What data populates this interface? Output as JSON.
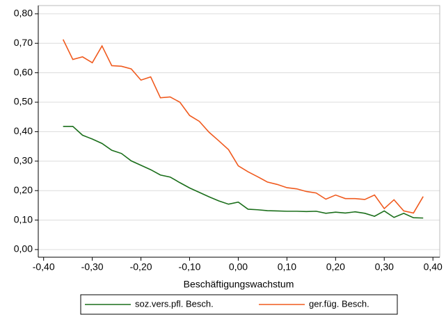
{
  "chart_data": {
    "type": "line",
    "x_label": "Beschäftigungswachstum",
    "x": [
      -0.36,
      -0.34,
      -0.32,
      -0.3,
      -0.28,
      -0.26,
      -0.24,
      -0.22,
      -0.2,
      -0.18,
      -0.16,
      -0.14,
      -0.12,
      -0.1,
      -0.08,
      -0.06,
      -0.04,
      -0.02,
      0.0,
      0.02,
      0.04,
      0.06,
      0.08,
      0.1,
      0.12,
      0.14,
      0.16,
      0.18,
      0.2,
      0.22,
      0.24,
      0.26,
      0.28,
      0.3,
      0.32,
      0.34,
      0.36,
      0.38
    ],
    "series": [
      {
        "name": "soz.vers.pfl. Besch.",
        "color": "#1a6e1a",
        "values": [
          0.418,
          0.418,
          0.388,
          0.375,
          0.36,
          0.337,
          0.326,
          0.301,
          0.286,
          0.271,
          0.253,
          0.246,
          0.227,
          0.209,
          0.194,
          0.179,
          0.165,
          0.154,
          0.161,
          0.137,
          0.135,
          0.132,
          0.131,
          0.13,
          0.13,
          0.129,
          0.13,
          0.123,
          0.127,
          0.124,
          0.128,
          0.123,
          0.113,
          0.131,
          0.109,
          0.123,
          0.108,
          0.107
        ]
      },
      {
        "name": "ger.füg. Besch.",
        "color": "#f05a1e",
        "values": [
          0.713,
          0.645,
          0.654,
          0.634,
          0.691,
          0.624,
          0.622,
          0.613,
          0.575,
          0.586,
          0.515,
          0.518,
          0.5,
          0.455,
          0.435,
          0.398,
          0.369,
          0.339,
          0.284,
          0.264,
          0.247,
          0.229,
          0.221,
          0.21,
          0.206,
          0.197,
          0.192,
          0.171,
          0.185,
          0.173,
          0.173,
          0.17,
          0.185,
          0.139,
          0.169,
          0.131,
          0.124,
          0.18
        ]
      }
    ],
    "xlim": [
      -0.411,
      0.414
    ],
    "ylim": [
      -0.026,
      0.828
    ],
    "xticks": [
      {
        "value": -0.4,
        "label": "-0,40"
      },
      {
        "value": -0.3,
        "label": "-0,30"
      },
      {
        "value": -0.2,
        "label": "-0,20"
      },
      {
        "value": -0.1,
        "label": "-0,10"
      },
      {
        "value": 0,
        "label": "0,00"
      },
      {
        "value": 0.1,
        "label": "0,10"
      },
      {
        "value": 0.2,
        "label": "0,20"
      },
      {
        "value": 0.3,
        "label": "0,30"
      },
      {
        "value": 0.4,
        "label": "0,40"
      }
    ],
    "yticks": [
      {
        "value": 0,
        "label": "0,00"
      },
      {
        "value": 0.1,
        "label": "0,10"
      },
      {
        "value": 0.2,
        "label": "0,20"
      },
      {
        "value": 0.3,
        "label": "0,30"
      },
      {
        "value": 0.4,
        "label": "0,40"
      },
      {
        "value": 0.5,
        "label": "0,50"
      },
      {
        "value": 0.6,
        "label": "0,60"
      },
      {
        "value": 0.7,
        "label": "0,70"
      },
      {
        "value": 0.8,
        "label": "0,80"
      }
    ],
    "grid": true
  }
}
